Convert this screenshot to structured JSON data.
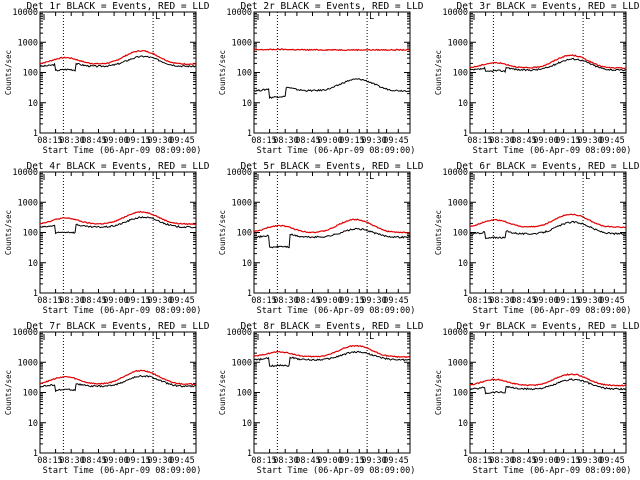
{
  "figure": {
    "background": "#ffffff",
    "event_color": "#000000",
    "lld_color": "#e00000"
  },
  "chart_data": [
    {
      "type": "line",
      "title": "Det 1r BLACK = Events, RED = LLD",
      "xlabel": "Start Time (06-Apr-09 08:09:00)",
      "ylabel": "Counts/sec",
      "yscale": "log",
      "ylim": [
        1,
        10000
      ],
      "yticks": [
        "1",
        "10",
        "100",
        "1000",
        "10000"
      ],
      "xlim_min": [
        0,
        40
      ],
      "xticks_min": [
        4,
        11,
        15,
        19,
        24,
        28,
        31,
        36,
        39
      ],
      "xticklabels": [
        "08:15",
        "08:30",
        "08:45",
        "09:00",
        "09:15",
        "09:30",
        "09:45"
      ],
      "vlines_min": [
        6,
        29
      ],
      "marker": "L",
      "xtick_label_positions": [
        4,
        11,
        15,
        19,
        24,
        29,
        34
      ],
      "events": {
        "base": 160,
        "peak": 340,
        "step_low": 110,
        "step_end": 9
      },
      "lld": {
        "base": 190,
        "bump1": 310,
        "peak": 520
      }
    },
    {
      "type": "line",
      "title": "Det 2r BLACK = Events, RED = LLD",
      "xlabel": "Start Time (06-Apr-09 08:09:00)",
      "ylabel": "Counts/sec",
      "yscale": "log",
      "ylim": [
        1,
        10000
      ],
      "yticks": [
        "1",
        "10",
        "100",
        "1000",
        "10000"
      ],
      "xlim_min": [
        0,
        40
      ],
      "xticklabels": [
        "08:15",
        "08:30",
        "08:45",
        "09:00",
        "09:15",
        "09:30",
        "09:45"
      ],
      "vlines_min": [
        6,
        29
      ],
      "marker": "L",
      "xtick_label_positions": [
        4,
        11,
        15,
        19,
        24,
        29,
        34
      ],
      "events": {
        "base": 25,
        "peak": 60,
        "step_low": 14,
        "step_end": 8
      },
      "lld": {
        "base": 560,
        "bump1": 580,
        "peak": 560
      }
    },
    {
      "type": "line",
      "title": "Det 3r BLACK = Events, RED = LLD",
      "xlabel": "Start Time (06-Apr-09 08:09:00)",
      "ylabel": "Counts/sec",
      "yscale": "log",
      "ylim": [
        1,
        10000
      ],
      "yticks": [
        "1",
        "10",
        "100",
        "1000",
        "10000"
      ],
      "xlim_min": [
        0,
        40
      ],
      "xticklabels": [
        "08:15",
        "08:30",
        "08:45",
        "09:00",
        "09:15",
        "09:30",
        "09:45"
      ],
      "vlines_min": [
        6,
        29
      ],
      "marker": "L",
      "xtick_label_positions": [
        4,
        11,
        15,
        19,
        24,
        29,
        34
      ],
      "events": {
        "base": 120,
        "peak": 280,
        "step_low": 100,
        "step_end": 9
      },
      "lld": {
        "base": 140,
        "bump1": 210,
        "peak": 370
      }
    },
    {
      "type": "line",
      "title": "Det 4r BLACK = Events, RED = LLD",
      "xlabel": "Start Time (06-Apr-09 08:09:00)",
      "ylabel": "Counts/sec",
      "yscale": "log",
      "ylim": [
        1,
        10000
      ],
      "yticks": [
        "1",
        "10",
        "100",
        "1000",
        "10000"
      ],
      "xlim_min": [
        0,
        40
      ],
      "xticklabels": [
        "08:15",
        "08:30",
        "08:45",
        "09:00",
        "09:15",
        "09:30",
        "09:45"
      ],
      "vlines_min": [
        6,
        29
      ],
      "marker": "L",
      "xtick_label_positions": [
        4,
        11,
        15,
        19,
        24,
        29,
        34
      ],
      "events": {
        "base": 150,
        "peak": 320,
        "step_low": 90,
        "step_end": 9
      },
      "lld": {
        "base": 190,
        "bump1": 300,
        "peak": 480
      }
    },
    {
      "type": "line",
      "title": "Det 5r BLACK = Events, RED = LLD",
      "xlabel": "Start Time (06-Apr-09 08:09:00)",
      "ylabel": "Counts/sec",
      "yscale": "log",
      "ylim": [
        1,
        10000
      ],
      "yticks": [
        "1",
        "10",
        "100",
        "1000",
        "10000"
      ],
      "xlim_min": [
        0,
        40
      ],
      "xticklabels": [
        "08:15",
        "08:30",
        "08:45",
        "09:00",
        "09:15",
        "09:30",
        "09:45"
      ],
      "vlines_min": [
        6,
        29
      ],
      "marker": "L",
      "xtick_label_positions": [
        4,
        11,
        15,
        19,
        24,
        29,
        34
      ],
      "events": {
        "base": 70,
        "peak": 130,
        "step_low": 30,
        "step_end": 9
      },
      "lld": {
        "base": 100,
        "bump1": 170,
        "peak": 270
      }
    },
    {
      "type": "line",
      "title": "Det 6r BLACK = Events, RED = LLD",
      "xlabel": "Start Time (06-Apr-09 08:09:00)",
      "ylabel": "Counts/sec",
      "yscale": "log",
      "ylim": [
        1,
        10000
      ],
      "yticks": [
        "1",
        "10",
        "100",
        "1000",
        "10000"
      ],
      "xlim_min": [
        0,
        40
      ],
      "xticklabels": [
        "08:15",
        "08:30",
        "08:45",
        "09:00",
        "09:15",
        "09:30",
        "09:45"
      ],
      "vlines_min": [
        6,
        29
      ],
      "marker": "L",
      "xtick_label_positions": [
        4,
        11,
        15,
        19,
        24,
        29,
        34
      ],
      "events": {
        "base": 90,
        "peak": 220,
        "step_low": 60,
        "step_end": 9
      },
      "lld": {
        "base": 150,
        "bump1": 260,
        "peak": 400
      }
    },
    {
      "type": "line",
      "title": "Det 7r BLACK = Events, RED = LLD",
      "xlabel": "Start Time (06-Apr-09 08:09:00)",
      "ylabel": "Counts/sec",
      "yscale": "log",
      "ylim": [
        1,
        10000
      ],
      "yticks": [
        "1",
        "10",
        "100",
        "1000",
        "10000"
      ],
      "xlim_min": [
        0,
        40
      ],
      "xticklabels": [
        "08:15",
        "08:30",
        "08:45",
        "09:00",
        "09:15",
        "09:30",
        "09:45"
      ],
      "vlines_min": [
        6,
        29
      ],
      "marker": "L",
      "xtick_label_positions": [
        4,
        11,
        15,
        19,
        24,
        29,
        34
      ],
      "events": {
        "base": 160,
        "peak": 350,
        "step_low": 110,
        "step_end": 9
      },
      "lld": {
        "base": 190,
        "bump1": 330,
        "peak": 530
      }
    },
    {
      "type": "line",
      "title": "Det 8r BLACK = Events, RED = LLD",
      "xlabel": "Start Time (06-Apr-09 08:09:00)",
      "ylabel": "Counts/sec",
      "yscale": "log",
      "ylim": [
        1,
        10000
      ],
      "yticks": [
        "1",
        "10",
        "100",
        "1000",
        "10000"
      ],
      "xlim_min": [
        0,
        40
      ],
      "xticklabels": [
        "08:15",
        "08:30",
        "08:45",
        "09:00",
        "09:15",
        "09:30",
        "09:45"
      ],
      "vlines_min": [
        6,
        29
      ],
      "marker": "L",
      "xtick_label_positions": [
        4,
        11,
        15,
        19,
        24,
        29,
        34
      ],
      "events": {
        "base": 1200,
        "peak": 2200,
        "step_low": 700,
        "step_end": 9
      },
      "lld": {
        "base": 1500,
        "bump1": 2200,
        "peak": 3500
      }
    },
    {
      "type": "line",
      "title": "Det 9r BLACK = Events, RED = LLD",
      "xlabel": "Start Time (06-Apr-09 08:09:00)",
      "ylabel": "Counts/sec",
      "yscale": "log",
      "ylim": [
        1,
        10000
      ],
      "yticks": [
        "1",
        "10",
        "100",
        "1000",
        "10000"
      ],
      "xlim_min": [
        0,
        40
      ],
      "xticklabels": [
        "08:15",
        "08:30",
        "08:45",
        "09:00",
        "09:15",
        "09:30",
        "09:45"
      ],
      "vlines_min": [
        6,
        29
      ],
      "marker": "L",
      "xtick_label_positions": [
        4,
        11,
        15,
        19,
        24,
        29,
        34
      ],
      "events": {
        "base": 130,
        "peak": 270,
        "step_low": 90,
        "step_end": 9
      },
      "lld": {
        "base": 170,
        "bump1": 270,
        "peak": 400
      }
    }
  ]
}
